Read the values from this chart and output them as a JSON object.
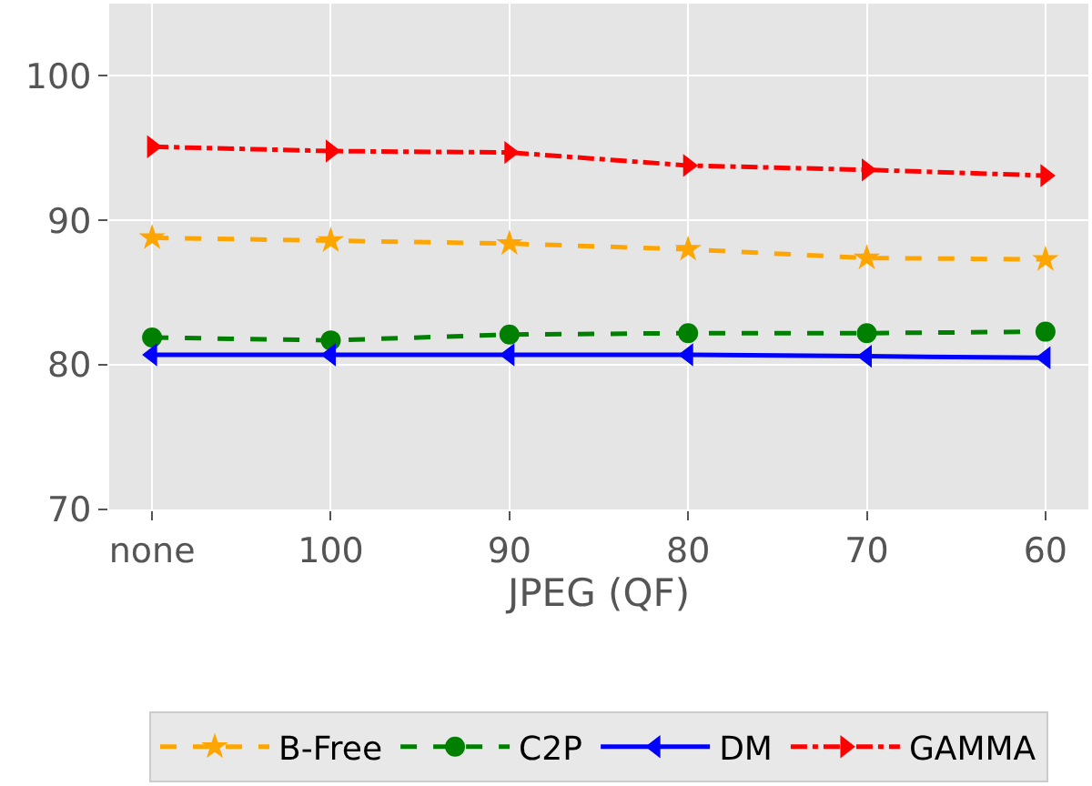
{
  "chart_data": {
    "type": "line",
    "xlabel": "JPEG (QF)",
    "categories": [
      "none",
      "100",
      "90",
      "80",
      "70",
      "60"
    ],
    "series": [
      {
        "name": "B-Free",
        "color": "#ffa500",
        "marker": "star",
        "line_style": "dashed",
        "values": [
          88.8,
          88.6,
          88.4,
          88.0,
          87.4,
          87.3
        ]
      },
      {
        "name": "C2P",
        "color": "#008000",
        "marker": "circle",
        "line_style": "dashed",
        "values": [
          81.9,
          81.7,
          82.1,
          82.2,
          82.2,
          82.3
        ]
      },
      {
        "name": "DM",
        "color": "#0000ff",
        "marker": "triangle-left",
        "line_style": "solid",
        "values": [
          80.7,
          80.7,
          80.7,
          80.7,
          80.6,
          80.5
        ]
      },
      {
        "name": "GAMMA",
        "color": "#ff0000",
        "marker": "triangle-right",
        "line_style": "dashdot",
        "values": [
          95.1,
          94.8,
          94.7,
          93.8,
          93.5,
          93.1
        ]
      }
    ],
    "ylim": [
      70,
      105
    ],
    "yticks": [
      70,
      80,
      90,
      100
    ],
    "grid": true,
    "legend": "bottom"
  }
}
